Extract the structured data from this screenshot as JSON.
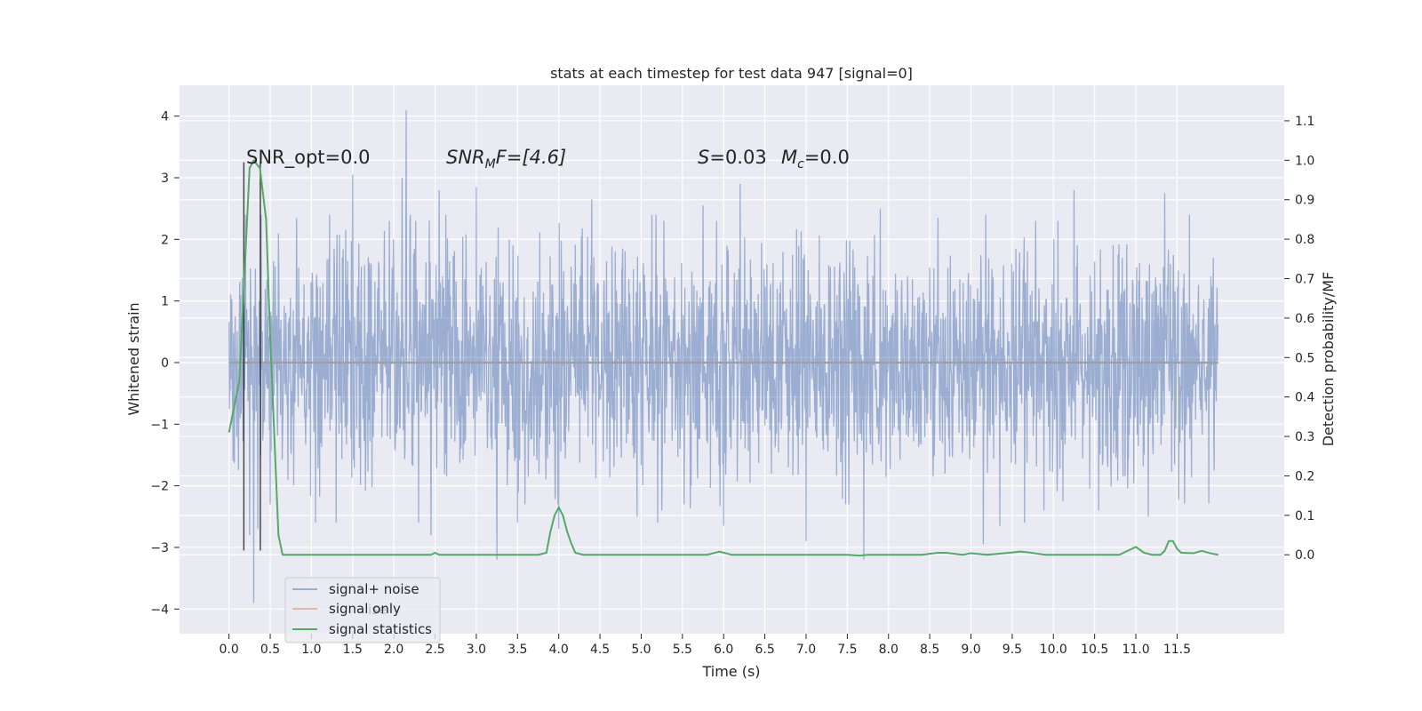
{
  "chart_data": {
    "type": "line",
    "title": "stats at each timestep for test data 947 [signal=0]",
    "xlabel": "Time (s)",
    "ylabel": "Whitened strain",
    "ylabel_right": "Detection probability/MF",
    "xlim": [
      -0.6,
      12.8
    ],
    "ylim": [
      -4.4,
      4.5
    ],
    "ylim_right": [
      -0.2,
      1.19
    ],
    "x_ticks": [
      "0.0",
      "0.5",
      "1.0",
      "1.5",
      "2.0",
      "2.5",
      "3.0",
      "3.5",
      "4.0",
      "4.5",
      "5.0",
      "5.5",
      "6.0",
      "6.5",
      "7.0",
      "7.5",
      "8.0",
      "8.5",
      "9.0",
      "9.5",
      "10.0",
      "10.5",
      "11.0",
      "11.5"
    ],
    "y_ticks_left": [
      "−4",
      "−3",
      "−2",
      "−1",
      "0",
      "1",
      "2",
      "3",
      "4"
    ],
    "y_ticks_right": [
      "0.0",
      "0.1",
      "0.2",
      "0.3",
      "0.4",
      "0.5",
      "0.6",
      "0.7",
      "0.8",
      "0.9",
      "1.0",
      "1.1"
    ],
    "grid": true,
    "legend_position": "lower-left",
    "annotations": {
      "snr_opt": "SNR_opt=0.0",
      "snr_mf_label": "SNR",
      "snr_mf_sub": "M",
      "snr_mf_value": "F=[4.6]",
      "s_label": "S",
      "s_value": "=0.03",
      "mc_label": "M",
      "mc_sub": "c",
      "mc_value": "=0.0",
      "ghost_legend_fragment": "ise"
    },
    "series": [
      {
        "name": "signal+ noise",
        "axis": "left",
        "color": "#4c72b0",
        "alpha": 0.5,
        "duration_s": 12.0,
        "typical_range": [
          -1.5,
          1.5
        ],
        "peaks_max": [
          [
            0.05,
            2.6
          ],
          [
            0.3,
            3.2
          ],
          [
            0.5,
            2.2
          ],
          [
            0.6,
            2.1
          ],
          [
            1.5,
            3.05
          ],
          [
            2.1,
            3.0
          ],
          [
            2.15,
            4.1
          ],
          [
            2.55,
            2.8
          ],
          [
            3.0,
            2.85
          ],
          [
            3.5,
            2.65
          ],
          [
            4.4,
            2.65
          ],
          [
            5.25,
            2.45
          ],
          [
            5.75,
            2.55
          ],
          [
            6.2,
            2.9
          ],
          [
            7.0,
            2.45
          ],
          [
            7.9,
            2.5
          ],
          [
            8.6,
            2.35
          ],
          [
            10.25,
            2.8
          ],
          [
            11.35,
            2.75
          ],
          [
            11.65,
            2.4
          ],
          [
            11.95,
            2.1
          ]
        ],
        "peaks_min": [
          [
            0.05,
            -1.6
          ],
          [
            0.25,
            -2.8
          ],
          [
            0.3,
            -3.9
          ],
          [
            0.35,
            -2.7
          ],
          [
            0.5,
            -2.3
          ],
          [
            1.05,
            -2.6
          ],
          [
            1.3,
            -2.6
          ],
          [
            2.3,
            -2.6
          ],
          [
            2.45,
            -2.8
          ],
          [
            3.25,
            -3.2
          ],
          [
            3.5,
            -2.6
          ],
          [
            4.0,
            -2.7
          ],
          [
            4.95,
            -2.5
          ],
          [
            5.2,
            -2.6
          ],
          [
            5.25,
            -2.4
          ],
          [
            6.0,
            -2.65
          ],
          [
            7.0,
            -2.9
          ],
          [
            7.7,
            -3.2
          ],
          [
            9.15,
            -2.95
          ],
          [
            9.35,
            -2.65
          ],
          [
            9.65,
            -2.6
          ],
          [
            10.55,
            -2.4
          ],
          [
            11.15,
            -2.5
          ],
          [
            11.95,
            -1.75
          ]
        ]
      },
      {
        "name": "signal only",
        "axis": "left",
        "color": "#dd8452",
        "alpha": 0.5,
        "x": [
          0,
          12.0
        ],
        "y": [
          0,
          0
        ]
      },
      {
        "name": "signal statistics",
        "axis": "right",
        "color": "#55a868",
        "x": [
          0.0,
          0.125,
          0.25,
          0.3,
          0.375,
          0.45,
          0.5,
          0.6,
          0.65,
          1.0,
          1.5,
          2.0,
          2.3,
          2.45,
          2.5,
          2.55,
          2.65,
          3.0,
          3.5,
          3.75,
          3.85,
          3.9,
          3.95,
          4.0,
          4.05,
          4.1,
          4.15,
          4.2,
          4.3,
          4.5,
          5.0,
          5.5,
          5.8,
          5.95,
          6.1,
          6.3,
          7.0,
          7.5,
          7.65,
          7.75,
          8.0,
          8.4,
          8.6,
          8.7,
          8.9,
          9.0,
          9.2,
          9.4,
          9.6,
          9.7,
          9.9,
          10.0,
          10.5,
          10.8,
          10.9,
          11.0,
          11.1,
          11.2,
          11.3,
          11.35,
          11.4,
          11.45,
          11.5,
          11.55,
          11.7,
          11.8,
          11.9,
          12.0
        ],
        "y": [
          0.31,
          0.44,
          0.98,
          1.0,
          0.98,
          0.85,
          0.55,
          0.05,
          0.0,
          0.0,
          0.0,
          0.0,
          0.0,
          0.0,
          0.005,
          0.0,
          0.0,
          0.0,
          0.0,
          0.0,
          0.005,
          0.06,
          0.1,
          0.12,
          0.1,
          0.06,
          0.03,
          0.005,
          0.0,
          0.0,
          0.0,
          0.0,
          0.0,
          0.008,
          0.0,
          0.0,
          0.0,
          0.0,
          -0.002,
          0.0,
          0.0,
          0.0,
          0.005,
          0.005,
          0.0,
          0.004,
          0.0,
          0.004,
          0.008,
          0.006,
          0.0,
          0.0,
          0.0,
          0.0,
          0.01,
          0.02,
          0.005,
          0.0,
          0.0,
          0.01,
          0.035,
          0.035,
          0.015,
          0.005,
          0.004,
          0.01,
          0.004,
          0.0
        ]
      }
    ],
    "markers": {
      "color": "#000000",
      "x": [
        0.18,
        0.38
      ],
      "y_range": [
        -3.05,
        3.25
      ]
    }
  }
}
